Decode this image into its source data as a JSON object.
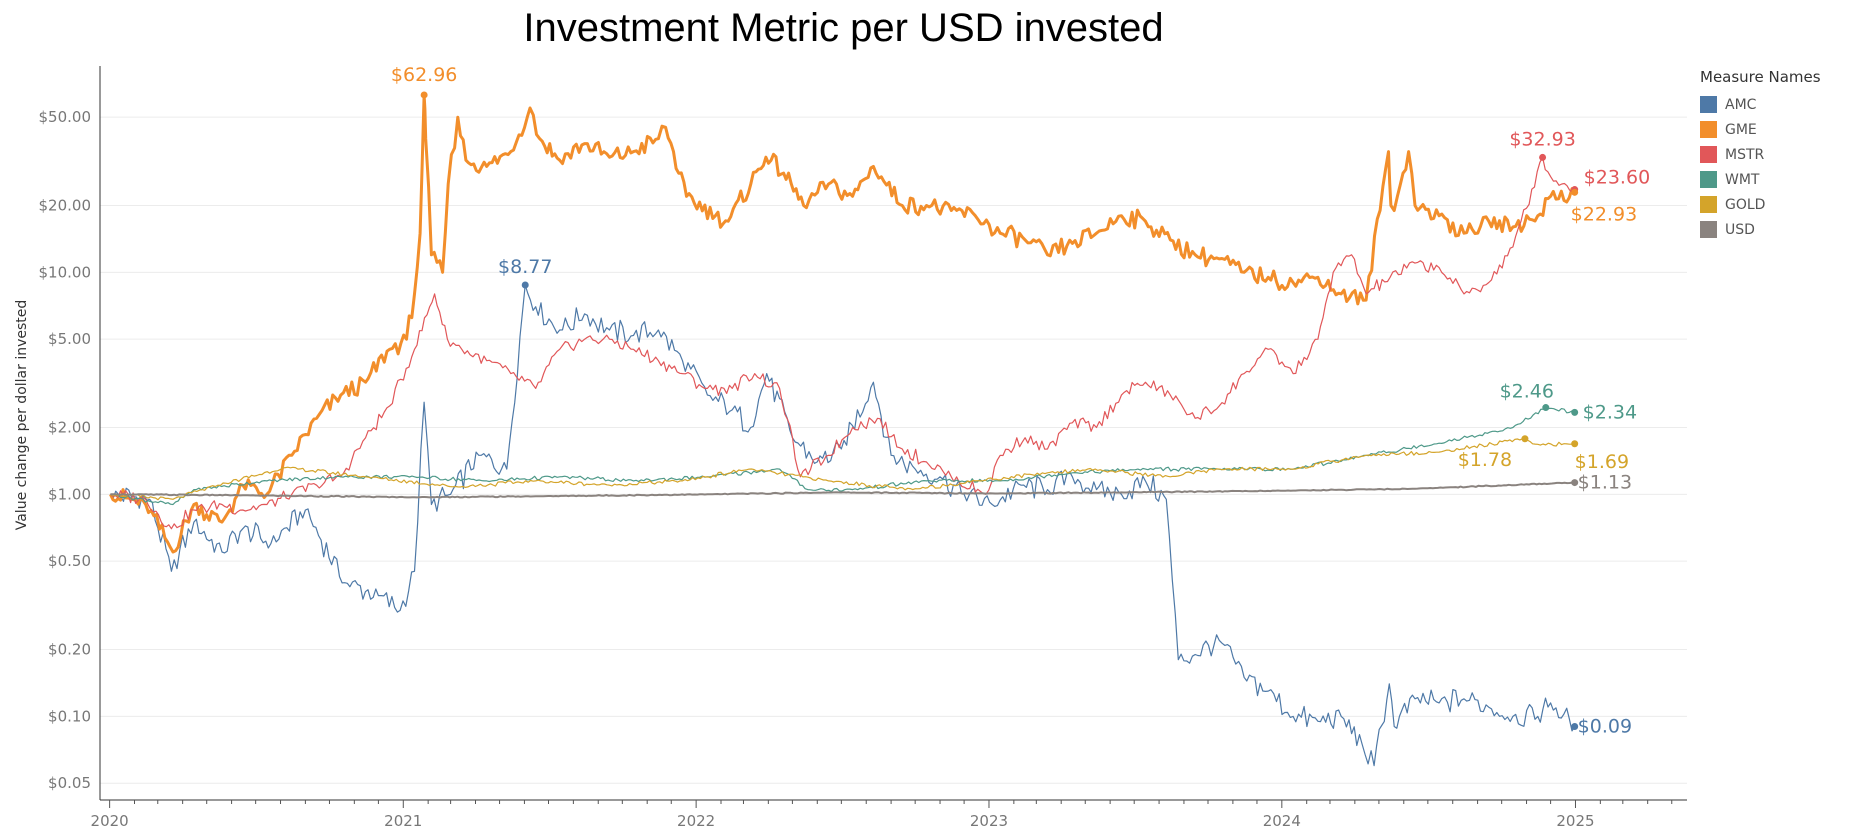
{
  "chart_data": {
    "type": "line",
    "title": "Investment Metric per USD invested",
    "ylabel": "Value change per dollar invested",
    "xlabel": "",
    "yscale": "log",
    "ylim": [
      0.042,
      85
    ],
    "xlim": [
      "2019-12-20",
      "2025-05-20"
    ],
    "y_ticks": [
      {
        "value": 50,
        "label": "$50.00"
      },
      {
        "value": 20,
        "label": "$20.00"
      },
      {
        "value": 10,
        "label": "$10.00"
      },
      {
        "value": 5,
        "label": "$5.00"
      },
      {
        "value": 2,
        "label": "$2.00"
      },
      {
        "value": 1,
        "label": "$1.00"
      },
      {
        "value": 0.5,
        "label": "$0.50"
      },
      {
        "value": 0.2,
        "label": "$0.20"
      },
      {
        "value": 0.1,
        "label": "$0.10"
      },
      {
        "value": 0.05,
        "label": "$0.05"
      }
    ],
    "x_ticks": [
      {
        "value": "2020-01-01",
        "label": "2020"
      },
      {
        "value": "2021-01-01",
        "label": "2021"
      },
      {
        "value": "2022-01-01",
        "label": "2022"
      },
      {
        "value": "2023-01-01",
        "label": "2023"
      },
      {
        "value": "2024-01-01",
        "label": "2024"
      },
      {
        "value": "2025-01-01",
        "label": "2025"
      }
    ],
    "grid": "horizontal",
    "legend": {
      "title": "Measure Names",
      "position": "right"
    },
    "series": [
      {
        "name": "AMC",
        "color": "#4e79a7",
        "width": 1.2,
        "x": [
          "2020-01-02",
          "2020-02-20",
          "2020-03-18",
          "2020-04-15",
          "2020-05-20",
          "2020-06-15",
          "2020-07-20",
          "2020-09-01",
          "2020-10-20",
          "2020-12-01",
          "2020-12-28",
          "2021-01-15",
          "2021-01-27",
          "2021-02-05",
          "2021-03-01",
          "2021-04-05",
          "2021-05-10",
          "2021-06-02",
          "2021-06-15",
          "2021-07-15",
          "2021-08-15",
          "2021-09-15",
          "2021-10-15",
          "2021-11-15",
          "2021-12-15",
          "2022-01-15",
          "2022-02-15",
          "2022-03-10",
          "2022-03-30",
          "2022-05-01",
          "2022-06-01",
          "2022-07-01",
          "2022-08-10",
          "2022-09-01",
          "2022-10-01",
          "2022-11-01",
          "2022-12-01",
          "2023-01-05",
          "2023-02-10",
          "2023-03-15",
          "2023-04-15",
          "2023-05-15",
          "2023-06-15",
          "2023-07-15",
          "2023-08-10",
          "2023-08-25",
          "2023-09-15",
          "2023-10-15",
          "2023-11-15",
          "2023-12-15",
          "2024-01-15",
          "2024-02-15",
          "2024-03-15",
          "2024-04-10",
          "2024-04-25",
          "2024-05-14",
          "2024-05-20",
          "2024-06-15",
          "2024-07-15",
          "2024-08-15",
          "2024-09-15",
          "2024-10-15",
          "2024-11-15",
          "2024-12-01",
          "2024-12-31"
        ],
        "y": [
          1.0,
          0.95,
          0.45,
          0.75,
          0.55,
          0.7,
          0.6,
          0.85,
          0.4,
          0.35,
          0.3,
          0.45,
          2.6,
          0.9,
          1.0,
          1.5,
          1.3,
          8.77,
          7.0,
          5.5,
          6.5,
          5.5,
          5.2,
          5.5,
          4.0,
          2.8,
          2.4,
          2.0,
          3.5,
          1.8,
          1.4,
          1.6,
          3.2,
          1.5,
          1.3,
          1.2,
          1.0,
          0.9,
          1.1,
          1.05,
          1.2,
          1.05,
          1.0,
          1.15,
          0.95,
          0.18,
          0.19,
          0.22,
          0.15,
          0.13,
          0.1,
          0.095,
          0.1,
          0.075,
          0.06,
          0.14,
          0.09,
          0.12,
          0.115,
          0.12,
          0.11,
          0.1,
          0.1,
          0.115,
          0.09
        ]
      },
      {
        "name": "GME",
        "color": "#f28e2b",
        "width": 3,
        "x": [
          "2020-01-02",
          "2020-02-15",
          "2020-03-20",
          "2020-04-15",
          "2020-05-20",
          "2020-06-15",
          "2020-07-15",
          "2020-08-15",
          "2020-09-15",
          "2020-10-15",
          "2020-11-15",
          "2020-12-15",
          "2021-01-05",
          "2021-01-15",
          "2021-01-22",
          "2021-01-27",
          "2021-01-29",
          "2021-02-05",
          "2021-02-19",
          "2021-02-26",
          "2021-03-10",
          "2021-03-20",
          "2021-04-15",
          "2021-05-15",
          "2021-06-08",
          "2021-06-20",
          "2021-07-15",
          "2021-08-15",
          "2021-09-15",
          "2021-10-15",
          "2021-11-15",
          "2021-11-24",
          "2021-12-20",
          "2022-01-25",
          "2022-02-10",
          "2022-03-29",
          "2022-04-20",
          "2022-05-15",
          "2022-06-15",
          "2022-07-15",
          "2022-08-10",
          "2022-09-15",
          "2022-10-15",
          "2022-11-15",
          "2022-12-15",
          "2023-01-15",
          "2023-02-15",
          "2023-03-15",
          "2023-04-15",
          "2023-05-15",
          "2023-06-15",
          "2023-07-15",
          "2023-08-15",
          "2023-09-15",
          "2023-10-15",
          "2023-11-15",
          "2023-12-15",
          "2024-01-15",
          "2024-02-15",
          "2024-03-15",
          "2024-04-15",
          "2024-05-13",
          "2024-05-16",
          "2024-05-24",
          "2024-06-07",
          "2024-06-15",
          "2024-07-15",
          "2024-08-15",
          "2024-09-15",
          "2024-10-15",
          "2024-11-15",
          "2024-12-01",
          "2024-12-31"
        ],
        "y": [
          1.0,
          0.9,
          0.55,
          0.9,
          0.75,
          1.1,
          1.0,
          1.5,
          2.2,
          2.8,
          3.2,
          4.5,
          5.0,
          8.0,
          15.0,
          62.96,
          40.0,
          12.0,
          10.0,
          25.0,
          50.0,
          32.0,
          30.0,
          35.0,
          55.0,
          40.0,
          32.0,
          38.0,
          33.0,
          35.0,
          40.0,
          45.0,
          22.0,
          18.0,
          17.0,
          33.0,
          28.0,
          20.0,
          25.0,
          22.0,
          30.0,
          20.0,
          20.0,
          19.0,
          18.0,
          15.0,
          14.0,
          12.0,
          13.5,
          15.0,
          18.0,
          17.0,
          14.0,
          12.0,
          11.5,
          10.0,
          9.5,
          9.0,
          9.5,
          8.0,
          7.5,
          35.0,
          20.0,
          22.0,
          35.0,
          20.0,
          18.0,
          15.0,
          17.0,
          16.0,
          18.0,
          22.0,
          22.93
        ]
      },
      {
        "name": "MSTR",
        "color": "#e15759",
        "width": 1.2,
        "x": [
          "2020-01-02",
          "2020-02-15",
          "2020-03-18",
          "2020-04-15",
          "2020-05-20",
          "2020-06-15",
          "2020-07-15",
          "2020-08-15",
          "2020-09-15",
          "2020-10-15",
          "2020-11-15",
          "2020-12-15",
          "2021-01-15",
          "2021-02-09",
          "2021-02-25",
          "2021-03-15",
          "2021-04-15",
          "2021-05-15",
          "2021-06-15",
          "2021-07-15",
          "2021-08-15",
          "2021-09-15",
          "2021-10-15",
          "2021-11-15",
          "2021-12-15",
          "2022-01-15",
          "2022-02-15",
          "2022-03-15",
          "2022-04-15",
          "2022-05-11",
          "2022-06-15",
          "2022-07-15",
          "2022-08-15",
          "2022-09-15",
          "2022-10-15",
          "2022-11-15",
          "2022-12-28",
          "2023-01-15",
          "2023-02-15",
          "2023-03-15",
          "2023-04-15",
          "2023-05-15",
          "2023-06-15",
          "2023-07-15",
          "2023-08-15",
          "2023-09-15",
          "2023-10-15",
          "2023-11-15",
          "2023-12-15",
          "2024-01-15",
          "2024-02-15",
          "2024-03-05",
          "2024-03-28",
          "2024-04-15",
          "2024-05-15",
          "2024-06-15",
          "2024-07-15",
          "2024-08-15",
          "2024-09-15",
          "2024-10-15",
          "2024-11-21",
          "2024-12-01",
          "2024-12-15",
          "2024-12-31"
        ],
        "y": [
          1.0,
          0.95,
          0.7,
          0.85,
          0.9,
          0.85,
          0.9,
          1.0,
          1.1,
          1.2,
          1.8,
          2.5,
          4.5,
          8.0,
          5.0,
          4.5,
          4.0,
          3.5,
          3.0,
          4.5,
          5.0,
          5.0,
          4.5,
          4.0,
          3.5,
          3.0,
          3.0,
          3.5,
          3.0,
          1.2,
          1.5,
          2.0,
          2.2,
          1.6,
          1.4,
          1.2,
          1.0,
          1.5,
          1.8,
          1.6,
          2.1,
          2.0,
          2.8,
          3.2,
          2.8,
          2.2,
          2.5,
          3.5,
          4.5,
          3.5,
          5.0,
          10.0,
          12.0,
          8.0,
          9.5,
          11.0,
          10.5,
          8.0,
          9.0,
          13.0,
          32.93,
          27.0,
          25.0,
          23.6
        ]
      },
      {
        "name": "WMT",
        "color": "#4e9989",
        "width": 1.2,
        "x": [
          "2020-01-02",
          "2020-03-20",
          "2020-04-15",
          "2020-07-15",
          "2020-10-15",
          "2021-01-15",
          "2021-04-15",
          "2021-07-15",
          "2021-10-15",
          "2022-01-15",
          "2022-04-15",
          "2022-05-20",
          "2022-07-15",
          "2022-10-15",
          "2023-01-15",
          "2023-04-15",
          "2023-07-15",
          "2023-10-15",
          "2024-01-15",
          "2024-04-15",
          "2024-07-15",
          "2024-10-15",
          "2024-11-25",
          "2024-12-31"
        ],
        "y": [
          1.0,
          0.9,
          1.05,
          1.15,
          1.2,
          1.2,
          1.15,
          1.2,
          1.15,
          1.2,
          1.3,
          1.05,
          1.05,
          1.15,
          1.15,
          1.25,
          1.3,
          1.3,
          1.3,
          1.5,
          1.7,
          2.0,
          2.46,
          2.34
        ]
      },
      {
        "name": "GOLD",
        "color": "#d4a42a",
        "width": 1.2,
        "x": [
          "2020-01-02",
          "2020-03-20",
          "2020-05-15",
          "2020-08-07",
          "2020-11-15",
          "2021-03-10",
          "2021-06-15",
          "2021-09-15",
          "2021-12-15",
          "2022-03-08",
          "2022-06-15",
          "2022-09-28",
          "2022-12-15",
          "2023-03-15",
          "2023-05-04",
          "2023-08-15",
          "2023-10-15",
          "2024-01-15",
          "2024-04-15",
          "2024-07-15",
          "2024-10-30",
          "2024-11-15",
          "2024-12-31"
        ],
        "y": [
          1.0,
          0.95,
          1.1,
          1.32,
          1.2,
          1.08,
          1.15,
          1.1,
          1.15,
          1.3,
          1.15,
          1.05,
          1.15,
          1.25,
          1.3,
          1.2,
          1.3,
          1.3,
          1.5,
          1.55,
          1.78,
          1.68,
          1.69
        ]
      },
      {
        "name": "USD",
        "color": "#8a837f",
        "width": 2,
        "x": [
          "2020-01-02",
          "2020-06-15",
          "2021-01-15",
          "2021-06-15",
          "2022-01-15",
          "2022-06-15",
          "2023-01-15",
          "2023-06-15",
          "2024-01-15",
          "2024-06-15",
          "2024-12-31"
        ],
        "y": [
          1.0,
          0.99,
          0.97,
          0.98,
          1.0,
          1.02,
          1.01,
          1.02,
          1.04,
          1.06,
          1.13
        ]
      }
    ],
    "annotations": [
      {
        "series": "GME",
        "x": "2021-01-27",
        "y": 62.96,
        "text": "$62.96",
        "color": "#f28e2b"
      },
      {
        "series": "AMC",
        "x": "2021-06-02",
        "y": 8.77,
        "text": "$8.77",
        "color": "#4e79a7"
      },
      {
        "series": "MSTR",
        "x": "2024-11-21",
        "y": 32.93,
        "text": "$32.93",
        "color": "#e15759"
      },
      {
        "series": "MSTR",
        "x": "2024-12-31",
        "y": 23.6,
        "text": "$23.60",
        "color": "#e15759"
      },
      {
        "series": "GME",
        "x": "2024-12-31",
        "y": 22.93,
        "text": "$22.93",
        "color": "#f28e2b"
      },
      {
        "series": "WMT",
        "x": "2024-11-25",
        "y": 2.46,
        "text": "$2.46",
        "color": "#4e9989"
      },
      {
        "series": "WMT",
        "x": "2024-12-31",
        "y": 2.34,
        "text": "$2.34",
        "color": "#4e9989"
      },
      {
        "series": "GOLD",
        "x": "2024-10-30",
        "y": 1.78,
        "text": "$1.78",
        "color": "#d4a42a"
      },
      {
        "series": "GOLD",
        "x": "2024-12-31",
        "y": 1.69,
        "text": "$1.69",
        "color": "#d4a42a"
      },
      {
        "series": "USD",
        "x": "2024-12-31",
        "y": 1.13,
        "text": "$1.13",
        "color": "#8a837f"
      },
      {
        "series": "AMC",
        "x": "2024-12-31",
        "y": 0.09,
        "text": "$0.09",
        "color": "#4e79a7"
      }
    ]
  },
  "legend": {
    "title": "Measure Names",
    "items": [
      {
        "label": "AMC",
        "color": "#4e79a7"
      },
      {
        "label": "GME",
        "color": "#f28e2b"
      },
      {
        "label": "MSTR",
        "color": "#e15759"
      },
      {
        "label": "WMT",
        "color": "#4e9989"
      },
      {
        "label": "GOLD",
        "color": "#d4a42a"
      },
      {
        "label": "USD",
        "color": "#8a837f"
      }
    ]
  }
}
